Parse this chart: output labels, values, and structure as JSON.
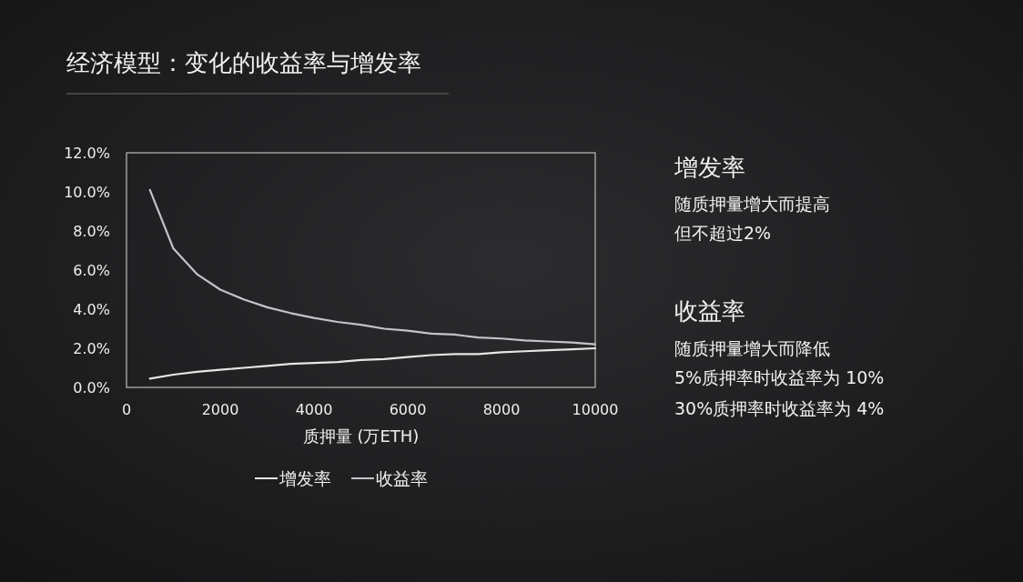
{
  "chart_data": {
    "type": "line",
    "title": "经济模型：变化的收益率与增发率",
    "xlabel": "质押量 (万ETH)",
    "x": [
      500,
      1000,
      1500,
      2000,
      2500,
      3000,
      3500,
      4000,
      4500,
      5000,
      5500,
      6000,
      6500,
      7000,
      7500,
      8000,
      8500,
      9000,
      9500,
      10000
    ],
    "series": [
      {
        "name": "增发率",
        "color": "#e6e6e6",
        "values": [
          0.45,
          0.65,
          0.8,
          0.9,
          1.0,
          1.1,
          1.2,
          1.25,
          1.3,
          1.4,
          1.45,
          1.55,
          1.65,
          1.7,
          1.7,
          1.8,
          1.85,
          1.9,
          1.95,
          2.0
        ]
      },
      {
        "name": "收益率",
        "color": "#c4c4c8",
        "values": [
          10.1,
          7.1,
          5.8,
          5.0,
          4.5,
          4.1,
          3.8,
          3.55,
          3.35,
          3.2,
          3.0,
          2.9,
          2.75,
          2.7,
          2.55,
          2.5,
          2.4,
          2.35,
          2.3,
          2.2
        ]
      }
    ],
    "xlim": [
      0,
      10000
    ],
    "xticks": [
      0,
      2000,
      4000,
      6000,
      8000,
      10000
    ],
    "ylim": [
      0,
      12
    ],
    "yticks": [
      {
        "value": 0,
        "label": "0.0%"
      },
      {
        "value": 2,
        "label": "2.0%"
      },
      {
        "value": 4,
        "label": "4.0%"
      },
      {
        "value": 6,
        "label": "6.0%"
      },
      {
        "value": 8,
        "label": "8.0%"
      },
      {
        "value": 10,
        "label": "10.0%"
      },
      {
        "value": 12,
        "label": "12.0%"
      }
    ],
    "legend": "bottom",
    "grid": false,
    "annotations": [
      "增发率",
      "随质押量增大而提高",
      "但不超过2%",
      "收益率",
      "随质押量增大而降低",
      "5%质押率时收益率为 10%",
      "30%质押率时收益率为 4%"
    ]
  }
}
